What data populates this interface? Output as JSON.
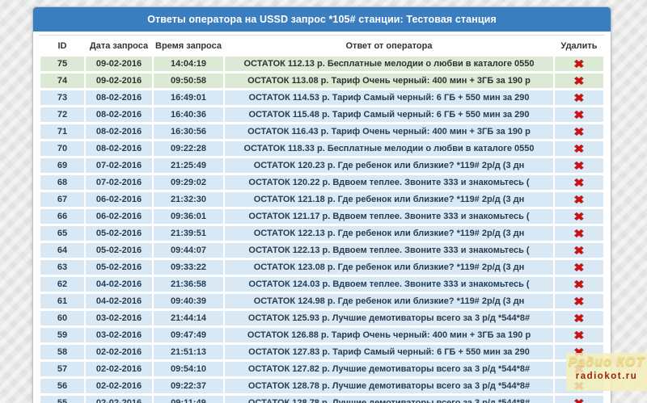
{
  "panel": {
    "title": "Ответы оператора на USSD запрос *105# станции: Тестовая станция"
  },
  "colors": {
    "accent_blue": "#3b7ec0",
    "green_row": "#dcead5",
    "blue_row": "#d8e8f4",
    "delete_red": "#c41414"
  },
  "table": {
    "headers": [
      "ID",
      "Дата запроса",
      "Время запроса",
      "Ответ от оператора",
      "Удалить"
    ],
    "delete_icon": "✖",
    "rows": [
      {
        "id": "75",
        "date": "09-02-2016",
        "time": "14:04:19",
        "answer": "ОСТАТОК 112.13 р. Бесплатные мелодии о любви в каталоге 0550",
        "highlight": "green"
      },
      {
        "id": "74",
        "date": "09-02-2016",
        "time": "09:50:58",
        "answer": "ОСТАТОК 113.08 р. Тариф Очень черный: 400 мин + 3ГБ за 190 р",
        "highlight": "green"
      },
      {
        "id": "73",
        "date": "08-02-2016",
        "time": "16:49:01",
        "answer": "ОСТАТОК 114.53 р. Тариф Самый черный: 6 ГБ + 550 мин за 290",
        "highlight": "blue"
      },
      {
        "id": "72",
        "date": "08-02-2016",
        "time": "16:40:36",
        "answer": "ОСТАТОК 115.48 р. Тариф Самый черный: 6 ГБ + 550 мин за 290",
        "highlight": "blue"
      },
      {
        "id": "71",
        "date": "08-02-2016",
        "time": "16:30:56",
        "answer": "ОСТАТОК 116.43 р. Тариф Очень черный: 400 мин + 3ГБ за 190 р",
        "highlight": "blue"
      },
      {
        "id": "70",
        "date": "08-02-2016",
        "time": "09:22:28",
        "answer": "ОСТАТОК 118.33 р. Бесплатные мелодии о любви в каталоге 0550",
        "highlight": "blue"
      },
      {
        "id": "69",
        "date": "07-02-2016",
        "time": "21:25:49",
        "answer": "ОСТАТОК 120.23 р. Где ребенок или близкие? *119# 2р/д (3 дн",
        "highlight": "blue"
      },
      {
        "id": "68",
        "date": "07-02-2016",
        "time": "09:29:02",
        "answer": "ОСТАТОК 120.22 р. Вдвоем теплее. Звоните 333 и знакомьтесь (",
        "highlight": "blue"
      },
      {
        "id": "67",
        "date": "06-02-2016",
        "time": "21:32:30",
        "answer": "ОСТАТОК 121.18 р. Где ребенок или близкие? *119# 2р/д (3 дн",
        "highlight": "blue"
      },
      {
        "id": "66",
        "date": "06-02-2016",
        "time": "09:36:01",
        "answer": "ОСТАТОК 121.17 р. Вдвоем теплее. Звоните 333 и знакомьтесь (",
        "highlight": "blue"
      },
      {
        "id": "65",
        "date": "05-02-2016",
        "time": "21:39:51",
        "answer": "ОСТАТОК 122.13 р. Где ребенок или близкие? *119# 2р/д (3 дн",
        "highlight": "blue"
      },
      {
        "id": "64",
        "date": "05-02-2016",
        "time": "09:44:07",
        "answer": "ОСТАТОК 122.13 р. Вдвоем теплее. Звоните 333 и знакомьтесь (",
        "highlight": "blue"
      },
      {
        "id": "63",
        "date": "05-02-2016",
        "time": "09:33:22",
        "answer": "ОСТАТОК 123.08 р. Где ребенок или близкие? *119# 2р/д (3 дн",
        "highlight": "blue"
      },
      {
        "id": "62",
        "date": "04-02-2016",
        "time": "21:36:58",
        "answer": "ОСТАТОК 124.03 р. Вдвоем теплее. Звоните 333 и знакомьтесь (",
        "highlight": "blue"
      },
      {
        "id": "61",
        "date": "04-02-2016",
        "time": "09:40:39",
        "answer": "ОСТАТОК 124.98 р. Где ребенок или близкие? *119# 2р/д (3 дн",
        "highlight": "blue"
      },
      {
        "id": "60",
        "date": "03-02-2016",
        "time": "21:44:14",
        "answer": "ОСТАТОК 125.93 р. Лучшие демотиваторы всего за 3 р/д *544*8#",
        "highlight": "blue"
      },
      {
        "id": "59",
        "date": "03-02-2016",
        "time": "09:47:49",
        "answer": "ОСТАТОК 126.88 р. Тариф Очень черный: 400 мин + 3ГБ за 190 р",
        "highlight": "blue"
      },
      {
        "id": "58",
        "date": "02-02-2016",
        "time": "21:51:13",
        "answer": "ОСТАТОК 127.83 р. Тариф Самый черный: 6 ГБ + 550 мин за 290",
        "highlight": "blue"
      },
      {
        "id": "57",
        "date": "02-02-2016",
        "time": "09:54:10",
        "answer": "ОСТАТОК 127.82 р. Лучшие демотиваторы всего за 3 р/д *544*8#",
        "highlight": "blue"
      },
      {
        "id": "56",
        "date": "02-02-2016",
        "time": "09:22:37",
        "answer": "ОСТАТОК 128.78 р. Лучшие демотиваторы всего за 3 р/д *544*8#",
        "highlight": "blue"
      },
      {
        "id": "55",
        "date": "02-02-2016",
        "time": "09:11:49",
        "answer": "ОСТАТОК 128.78 р. Лучшие демотиваторы всего за 3 р/д *544*8#",
        "highlight": "blue"
      }
    ]
  },
  "watermark": {
    "logo": "Радио КОТ",
    "url": "radiokot.ru"
  }
}
